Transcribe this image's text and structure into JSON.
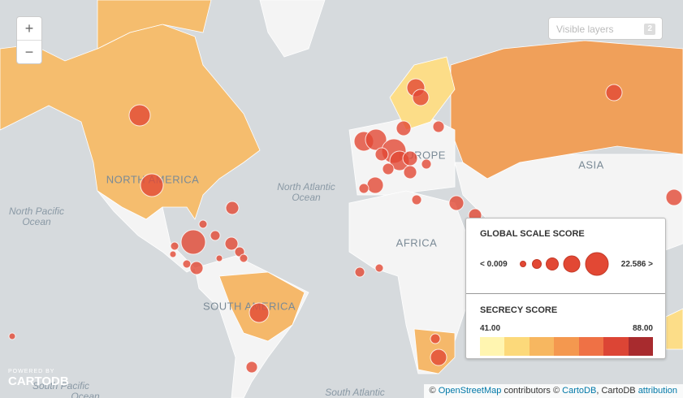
{
  "zoom_controls": {
    "zoom_in": "+",
    "zoom_out": "−"
  },
  "layers_button": {
    "label": "Visible layers",
    "count": 2
  },
  "map_labels": {
    "north_america": "NORTH AMERICA",
    "europe": "EUROPE",
    "asia": "ASIA",
    "africa": "AFRICA",
    "south_america": "SOUTH AMERICA",
    "north_atlantic": [
      "North Atlantic",
      "Ocean"
    ],
    "north_pacific": [
      "North Pacific",
      "Ocean"
    ],
    "south_pacific": [
      "South Pacific",
      "Ocean"
    ],
    "south_atlantic": "South Atlantic"
  },
  "legend": {
    "bubble": {
      "title": "GLOBAL SCALE SCORE",
      "min_label": "< 0.009",
      "max_label": "22.586 >"
    },
    "choropleth": {
      "title": "SECRECY SCORE",
      "min_label": "41.00",
      "max_label": "88.00"
    }
  },
  "branding": {
    "powered_by": "POWERED BY",
    "name": "CARTODB"
  },
  "attribution": [
    "©",
    "OpenStreetMap",
    "contributors ©",
    "CartoDB",
    ", CartoDB",
    "attribution"
  ]
}
